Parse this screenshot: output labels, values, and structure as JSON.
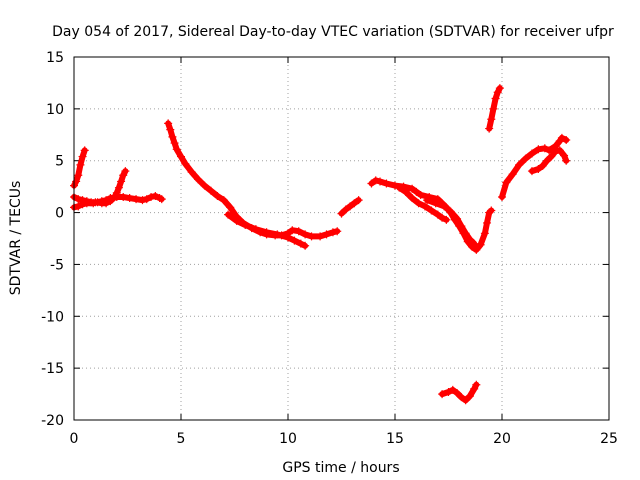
{
  "chart_data": {
    "type": "scatter",
    "title": "Day 054 of 2017, Sidereal Day-to-day VTEC variation (SDTVAR) for receiver ufpr",
    "xlabel": "GPS time / hours",
    "ylabel": "SDTVAR / TECUs",
    "xlim": [
      0,
      25
    ],
    "ylim": [
      -20,
      15
    ],
    "xticks": [
      0,
      5,
      10,
      15,
      20,
      25
    ],
    "yticks": [
      -20,
      -15,
      -10,
      -5,
      0,
      5,
      10,
      15
    ],
    "xtick_labels": [
      "0",
      "5",
      "10",
      "15",
      "20",
      "25"
    ],
    "ytick_labels": [
      "-20",
      "-15",
      "-10",
      "-5",
      "0",
      "5",
      "10",
      "15"
    ],
    "grid": true,
    "marker": "plus",
    "series_color": "#ff0000",
    "series": [
      {
        "name": "seg1",
        "points": [
          [
            0.0,
            2.6
          ],
          [
            0.1,
            3.0
          ],
          [
            0.2,
            3.6
          ],
          [
            0.3,
            4.6
          ],
          [
            0.4,
            5.4
          ],
          [
            0.5,
            6.0
          ]
        ]
      },
      {
        "name": "seg2",
        "points": [
          [
            0.0,
            1.5
          ],
          [
            0.2,
            1.3
          ],
          [
            0.4,
            1.2
          ],
          [
            0.6,
            1.1
          ],
          [
            0.8,
            1.0
          ],
          [
            1.0,
            1.0
          ],
          [
            1.3,
            0.9
          ],
          [
            1.5,
            0.9
          ],
          [
            1.7,
            1.1
          ],
          [
            1.9,
            1.5
          ],
          [
            2.0,
            1.9
          ],
          [
            2.1,
            2.4
          ],
          [
            2.2,
            3.0
          ],
          [
            2.3,
            3.6
          ],
          [
            2.4,
            4.0
          ]
        ]
      },
      {
        "name": "seg3",
        "points": [
          [
            0.0,
            0.5
          ],
          [
            0.2,
            0.6
          ],
          [
            0.4,
            0.8
          ],
          [
            0.6,
            0.9
          ],
          [
            0.9,
            0.9
          ],
          [
            1.1,
            1.0
          ],
          [
            1.3,
            1.1
          ],
          [
            1.5,
            1.2
          ],
          [
            1.7,
            1.4
          ],
          [
            2.0,
            1.5
          ],
          [
            2.3,
            1.5
          ],
          [
            2.6,
            1.4
          ],
          [
            2.9,
            1.3
          ],
          [
            3.2,
            1.2
          ],
          [
            3.4,
            1.3
          ],
          [
            3.6,
            1.5
          ],
          [
            3.8,
            1.6
          ],
          [
            4.0,
            1.4
          ],
          [
            4.1,
            1.3
          ]
        ]
      },
      {
        "name": "seg4",
        "points": [
          [
            4.4,
            8.6
          ],
          [
            4.5,
            8.0
          ],
          [
            4.6,
            7.3
          ],
          [
            4.7,
            6.7
          ],
          [
            4.8,
            6.1
          ],
          [
            5.0,
            5.4
          ],
          [
            5.2,
            4.7
          ],
          [
            5.5,
            3.9
          ],
          [
            5.8,
            3.2
          ],
          [
            6.1,
            2.6
          ],
          [
            6.4,
            2.1
          ],
          [
            6.7,
            1.6
          ],
          [
            7.0,
            1.2
          ],
          [
            7.3,
            0.5
          ],
          [
            7.6,
            -0.4
          ],
          [
            7.9,
            -1.0
          ],
          [
            8.3,
            -1.5
          ],
          [
            8.7,
            -1.9
          ],
          [
            9.0,
            -2.1
          ],
          [
            9.4,
            -2.2
          ],
          [
            9.7,
            -2.2
          ],
          [
            10.0,
            -2.0
          ],
          [
            10.2,
            -1.7
          ],
          [
            10.5,
            -1.8
          ],
          [
            10.8,
            -2.1
          ],
          [
            11.1,
            -2.3
          ],
          [
            11.5,
            -2.3
          ],
          [
            11.8,
            -2.1
          ],
          [
            12.1,
            -1.9
          ],
          [
            12.3,
            -1.8
          ]
        ]
      },
      {
        "name": "seg5",
        "points": [
          [
            7.2,
            -0.2
          ],
          [
            7.6,
            -0.8
          ],
          [
            8.0,
            -1.2
          ],
          [
            8.5,
            -1.6
          ],
          [
            9.0,
            -1.9
          ],
          [
            9.5,
            -2.1
          ],
          [
            10.0,
            -2.4
          ],
          [
            10.3,
            -2.7
          ],
          [
            10.6,
            -3.0
          ],
          [
            10.8,
            -3.2
          ]
        ]
      },
      {
        "name": "seg6",
        "points": [
          [
            12.5,
            -0.1
          ],
          [
            12.7,
            0.3
          ],
          [
            12.9,
            0.6
          ],
          [
            13.1,
            0.9
          ],
          [
            13.3,
            1.2
          ]
        ]
      },
      {
        "name": "seg7",
        "points": [
          [
            13.9,
            2.8
          ],
          [
            14.1,
            3.1
          ],
          [
            14.3,
            3.0
          ],
          [
            14.6,
            2.8
          ],
          [
            15.0,
            2.6
          ],
          [
            15.4,
            2.5
          ],
          [
            15.8,
            2.3
          ],
          [
            16.0,
            2.0
          ],
          [
            16.2,
            1.7
          ],
          [
            16.6,
            1.5
          ],
          [
            17.0,
            1.3
          ],
          [
            17.2,
            0.9
          ],
          [
            17.4,
            0.5
          ],
          [
            17.6,
            0.0
          ],
          [
            17.8,
            -0.7
          ],
          [
            18.0,
            -1.3
          ],
          [
            18.2,
            -2.0
          ],
          [
            18.4,
            -2.8
          ],
          [
            18.6,
            -3.3
          ],
          [
            18.8,
            -3.6
          ],
          [
            19.0,
            -3.1
          ],
          [
            19.2,
            -2.0
          ],
          [
            19.3,
            -1.0
          ],
          [
            19.4,
            0.0
          ],
          [
            19.5,
            0.2
          ]
        ]
      },
      {
        "name": "seg8",
        "points": [
          [
            15.2,
            2.4
          ],
          [
            15.5,
            2.0
          ],
          [
            15.8,
            1.4
          ],
          [
            16.1,
            0.9
          ],
          [
            16.4,
            0.6
          ],
          [
            16.7,
            0.2
          ],
          [
            17.0,
            -0.2
          ],
          [
            17.2,
            -0.5
          ],
          [
            17.4,
            -0.7
          ]
        ]
      },
      {
        "name": "seg9",
        "points": [
          [
            16.5,
            1.2
          ],
          [
            16.9,
            0.9
          ],
          [
            17.3,
            0.6
          ],
          [
            17.6,
            0.1
          ],
          [
            17.9,
            -0.6
          ],
          [
            18.1,
            -1.3
          ],
          [
            18.3,
            -2.0
          ],
          [
            18.5,
            -2.6
          ],
          [
            18.7,
            -3.0
          ]
        ]
      },
      {
        "name": "seg10",
        "points": [
          [
            17.2,
            -17.5
          ],
          [
            17.5,
            -17.3
          ],
          [
            17.7,
            -17.1
          ],
          [
            17.9,
            -17.4
          ],
          [
            18.1,
            -17.8
          ],
          [
            18.3,
            -18.1
          ],
          [
            18.5,
            -17.7
          ],
          [
            18.7,
            -17.0
          ],
          [
            18.8,
            -16.6
          ]
        ]
      },
      {
        "name": "seg11",
        "points": [
          [
            19.4,
            8.1
          ],
          [
            19.5,
            9.0
          ],
          [
            19.6,
            10.0
          ],
          [
            19.7,
            11.0
          ],
          [
            19.8,
            11.6
          ],
          [
            19.9,
            12.0
          ]
        ]
      },
      {
        "name": "seg12",
        "points": [
          [
            20.0,
            1.5
          ],
          [
            20.2,
            2.9
          ],
          [
            20.5,
            3.7
          ],
          [
            20.8,
            4.6
          ],
          [
            21.1,
            5.2
          ],
          [
            21.4,
            5.7
          ],
          [
            21.7,
            6.1
          ],
          [
            22.0,
            6.2
          ],
          [
            22.2,
            6.0
          ],
          [
            22.5,
            6.4
          ],
          [
            22.7,
            6.9
          ],
          [
            22.8,
            7.2
          ],
          [
            23.0,
            7.0
          ]
        ]
      },
      {
        "name": "seg13",
        "points": [
          [
            21.4,
            4.0
          ],
          [
            21.7,
            4.2
          ],
          [
            21.9,
            4.5
          ],
          [
            22.1,
            5.0
          ],
          [
            22.3,
            5.4
          ],
          [
            22.5,
            5.9
          ],
          [
            22.7,
            6.0
          ],
          [
            22.9,
            5.5
          ],
          [
            23.0,
            5.0
          ]
        ]
      }
    ]
  }
}
